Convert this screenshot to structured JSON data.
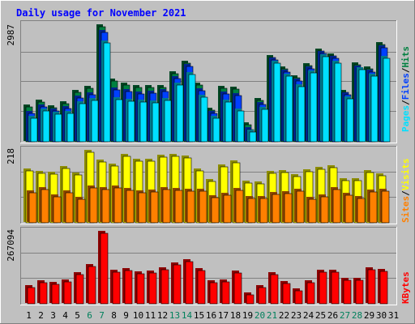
{
  "title": "Daily usage for November 2021",
  "colors": {
    "background": "#c0c0c0",
    "title": "#0000ff",
    "hits": "#008040",
    "files": "#0040ff",
    "pages": "#00e0ff",
    "visits": "#ffff00",
    "sites": "#ff8000",
    "kbytes": "#ff0000",
    "weekend_day": "#00805c",
    "weekday": "#000000"
  },
  "chart_data": [
    {
      "type": "bar",
      "name": "hits-files-pages",
      "ymax_label": "2987",
      "ylim": [
        0,
        2987
      ],
      "legend": [
        {
          "label": "Pages",
          "color": "#00e0ff"
        },
        {
          "label": "Files",
          "color": "#0040ff"
        },
        {
          "label": "Hits",
          "color": "#008040"
        }
      ],
      "categories": [
        "1",
        "2",
        "3",
        "4",
        "5",
        "6",
        "7",
        "8",
        "9",
        "10",
        "11",
        "12",
        "13",
        "14",
        "15",
        "16",
        "17",
        "18",
        "19",
        "20",
        "21",
        "22",
        "23",
        "24",
        "25",
        "26",
        "27",
        "28",
        "29",
        "30",
        "31"
      ],
      "series": [
        {
          "name": "Hits",
          "values": [
            900,
            1040,
            880,
            990,
            1280,
            1380,
            2987,
            1580,
            1470,
            1400,
            1400,
            1400,
            1760,
            2040,
            1470,
            830,
            1380,
            1360,
            450,
            1070,
            2180,
            1890,
            1660,
            1980,
            2350,
            2220,
            1280,
            1990,
            1900,
            2530,
            0
          ]
        },
        {
          "name": "Files",
          "values": [
            740,
            900,
            800,
            860,
            1140,
            1220,
            2850,
            1340,
            1300,
            1250,
            1260,
            1300,
            1640,
            1950,
            1320,
            740,
            1240,
            1190,
            320,
            970,
            2120,
            1810,
            1570,
            1890,
            2290,
            2160,
            1210,
            1920,
            1800,
            2450,
            0
          ]
        },
        {
          "name": "Pages",
          "values": [
            620,
            790,
            720,
            740,
            990,
            1070,
            2560,
            1100,
            1060,
            1030,
            1010,
            1080,
            1480,
            1750,
            1160,
            620,
            1030,
            800,
            250,
            840,
            2030,
            1700,
            1440,
            1790,
            2200,
            2040,
            1110,
            1870,
            1710,
            2170,
            0
          ]
        }
      ]
    },
    {
      "type": "bar",
      "name": "visits-sites",
      "ymax_label": "218",
      "ylim": [
        0,
        218
      ],
      "legend": [
        {
          "label": "Sites",
          "color": "#ff8000"
        },
        {
          "label": "Visits",
          "color": "#ffff00"
        }
      ],
      "categories": [
        "1",
        "2",
        "3",
        "4",
        "5",
        "6",
        "7",
        "8",
        "9",
        "10",
        "11",
        "12",
        "13",
        "14",
        "15",
        "16",
        "17",
        "18",
        "19",
        "20",
        "21",
        "22",
        "23",
        "24",
        "25",
        "26",
        "27",
        "28",
        "29",
        "30",
        "31"
      ],
      "series": [
        {
          "name": "Visits",
          "values": [
            160,
            153,
            150,
            168,
            147,
            218,
            187,
            176,
            206,
            191,
            191,
            203,
            205,
            200,
            160,
            128,
            172,
            185,
            123,
            121,
            154,
            155,
            143,
            158,
            165,
            170,
            130,
            131,
            155,
            145,
            0
          ]
        },
        {
          "name": "Sites",
          "values": [
            92,
            102,
            80,
            92,
            73,
            107,
            102,
            109,
            101,
            92,
            95,
            102,
            101,
            98,
            97,
            78,
            84,
            100,
            76,
            74,
            87,
            90,
            97,
            73,
            80,
            102,
            84,
            75,
            94,
            97,
            0
          ]
        }
      ]
    },
    {
      "type": "bar",
      "name": "kbytes",
      "ymax_label": "267094",
      "ylim": [
        0,
        267094
      ],
      "legend": [
        {
          "label": "KBytes",
          "color": "#ff0000"
        }
      ],
      "categories": [
        "1",
        "2",
        "3",
        "4",
        "5",
        "6",
        "7",
        "8",
        "9",
        "10",
        "11",
        "12",
        "13",
        "14",
        "15",
        "16",
        "17",
        "18",
        "19",
        "20",
        "21",
        "22",
        "23",
        "24",
        "25",
        "26",
        "27",
        "28",
        "29",
        "30",
        "31"
      ],
      "series": [
        {
          "name": "KBytes",
          "values": [
            60000,
            79000,
            75000,
            84000,
            112000,
            140000,
            267094,
            120000,
            125000,
            113000,
            117000,
            128000,
            148000,
            160000,
            125000,
            79000,
            83000,
            118000,
            34000,
            62000,
            112000,
            77000,
            50000,
            79000,
            119000,
            119000,
            89000,
            89000,
            130000,
            124000,
            0
          ]
        }
      ]
    }
  ],
  "day_labels": [
    "1",
    "2",
    "3",
    "4",
    "5",
    "6",
    "7",
    "8",
    "9",
    "10",
    "11",
    "12",
    "13",
    "14",
    "15",
    "16",
    "17",
    "18",
    "19",
    "20",
    "21",
    "22",
    "23",
    "24",
    "25",
    "26",
    "27",
    "28",
    "29",
    "30",
    "31"
  ],
  "weekend_days": [
    6,
    7,
    13,
    14,
    20,
    21,
    27,
    28
  ]
}
